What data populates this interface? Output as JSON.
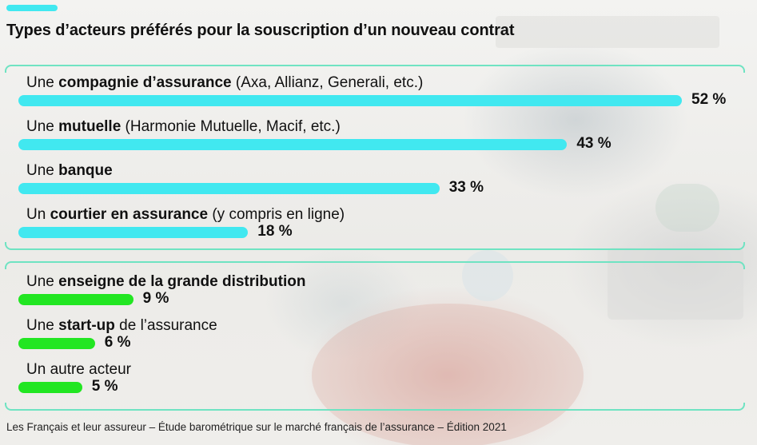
{
  "header": {
    "title": "Types d’acteurs préférés pour la souscription d’un nouveau contrat"
  },
  "footer": {
    "source": "Les Français et leur assureur – Étude barométrique sur le marché français de l’assurance – Édition 2021"
  },
  "colors": {
    "accent": "#41e8f0",
    "group1_bar": "#41e8f0",
    "group2_bar": "#22e622",
    "bracket": "#6fe3c2"
  },
  "chart_data": {
    "type": "bar",
    "orientation": "horizontal",
    "unit": "%",
    "xlim": [
      0,
      52
    ],
    "groups": [
      {
        "color": "#41e8f0",
        "rows": [
          {
            "label_pre": "Une ",
            "label_bold": "compagnie d’assurance",
            "label_post": " (Axa, Allianz, Generali, etc.)",
            "value": 52,
            "value_label": "52 %"
          },
          {
            "label_pre": "Une ",
            "label_bold": "mutuelle",
            "label_post": " (Harmonie Mutuelle, Macif, etc.)",
            "value": 43,
            "value_label": "43 %"
          },
          {
            "label_pre": "Une ",
            "label_bold": "banque",
            "label_post": "",
            "value": 33,
            "value_label": "33 %"
          },
          {
            "label_pre": "Un ",
            "label_bold": "courtier en assurance",
            "label_post": " (y compris en ligne)",
            "value": 18,
            "value_label": "18 %"
          }
        ]
      },
      {
        "color": "#22e622",
        "rows": [
          {
            "label_pre": "Une ",
            "label_bold": "enseigne de la grande distribution",
            "label_post": "",
            "value": 9,
            "value_label": "9 %"
          },
          {
            "label_pre": "Une ",
            "label_bold": "start-up",
            "label_post": " de l’assurance",
            "value": 6,
            "value_label": "6 %"
          },
          {
            "label_pre": "Un autre acteur",
            "label_bold": "",
            "label_post": "",
            "value": 5,
            "value_label": "5 %"
          }
        ]
      }
    ]
  }
}
